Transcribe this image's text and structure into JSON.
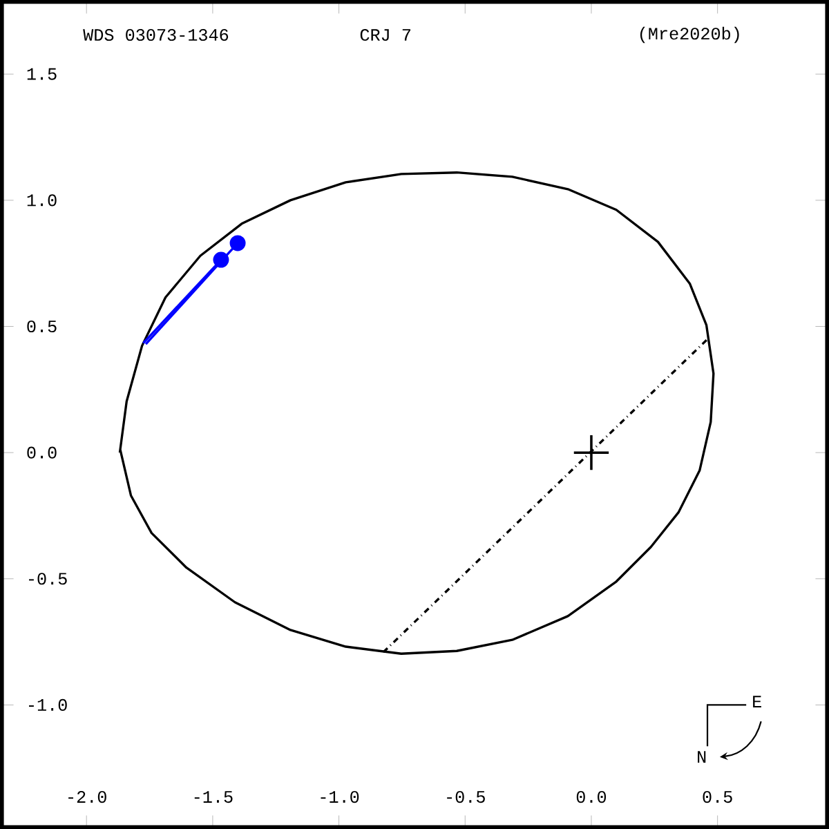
{
  "chart_data": {
    "type": "line",
    "title": "WDS 03073-1346",
    "subtitle": "CRJ   7",
    "annotations": [
      "(Mre2020b)",
      "E",
      "N"
    ],
    "xlim": [
      -2.335,
      0.934
    ],
    "ylim": [
      -1.484,
      1.786
    ],
    "xticks": [
      {
        "value": -2,
        "label": "-2.0"
      },
      {
        "value": -1.5,
        "label": "-1.5"
      },
      {
        "value": -1,
        "label": "-1.0"
      },
      {
        "value": -0.5,
        "label": "-0.5"
      },
      {
        "value": 0,
        "label": "0.0"
      },
      {
        "value": 0.5,
        "label": "0.5"
      }
    ],
    "yticks": [
      {
        "value": -1,
        "label": "-1.0"
      },
      {
        "value": -0.5,
        "label": "-0.5"
      },
      {
        "value": 0,
        "label": "0.0"
      },
      {
        "value": 0.5,
        "label": "0.5"
      },
      {
        "value": 1,
        "label": "1.0"
      },
      {
        "value": 1.5,
        "label": "1.5"
      }
    ],
    "grid": false,
    "series": [
      {
        "type": "line",
        "color": "#000000",
        "line_style": "solid",
        "x": [
          -1.868,
          -1.841,
          -1.78,
          -1.687,
          -1.549,
          -1.385,
          -1.192,
          -0.973,
          -0.753,
          -0.533,
          -0.313,
          -0.093,
          0.099,
          0.264,
          0.39,
          0.456,
          0.484,
          0.473,
          0.429,
          0.346,
          0.236,
          0.099,
          -0.093,
          -0.313,
          -0.533,
          -0.753,
          -0.973,
          -1.192,
          -1.412,
          -1.604,
          -1.742,
          -1.824,
          -1.866
        ],
        "values": [
          0.0,
          0.203,
          0.423,
          0.615,
          0.78,
          0.907,
          1.0,
          1.071,
          1.104,
          1.11,
          1.093,
          1.044,
          0.962,
          0.835,
          0.67,
          0.505,
          0.313,
          0.121,
          -0.071,
          -0.236,
          -0.374,
          -0.511,
          -0.648,
          -0.742,
          -0.786,
          -0.797,
          -0.769,
          -0.703,
          -0.593,
          -0.456,
          -0.319,
          -0.17,
          0.01
        ]
      },
      {
        "type": "line",
        "color": "#000000",
        "line_style": "dashdot",
        "x": [
          -0.824,
          0.467
        ],
        "values": [
          -0.791,
          0.456
        ]
      },
      {
        "type": "line",
        "color": "#0000ff",
        "line_style": "solid",
        "x": [
          -1.775,
          -1.467
        ],
        "values": [
          0.434,
          0.764
        ]
      },
      {
        "type": "line",
        "color": "#0000ff",
        "line_style": "solid",
        "x": [
          -1.765,
          -1.401
        ],
        "values": [
          0.43,
          0.83
        ]
      },
      {
        "type": "scatter",
        "color": "#0000ff",
        "marker": "circle",
        "x": [
          -1.467,
          -1.401
        ],
        "values": [
          0.764,
          0.83
        ]
      },
      {
        "type": "scatter",
        "color": "#000000",
        "marker": "cross",
        "x": [
          0
        ],
        "values": [
          0
        ]
      }
    ]
  }
}
